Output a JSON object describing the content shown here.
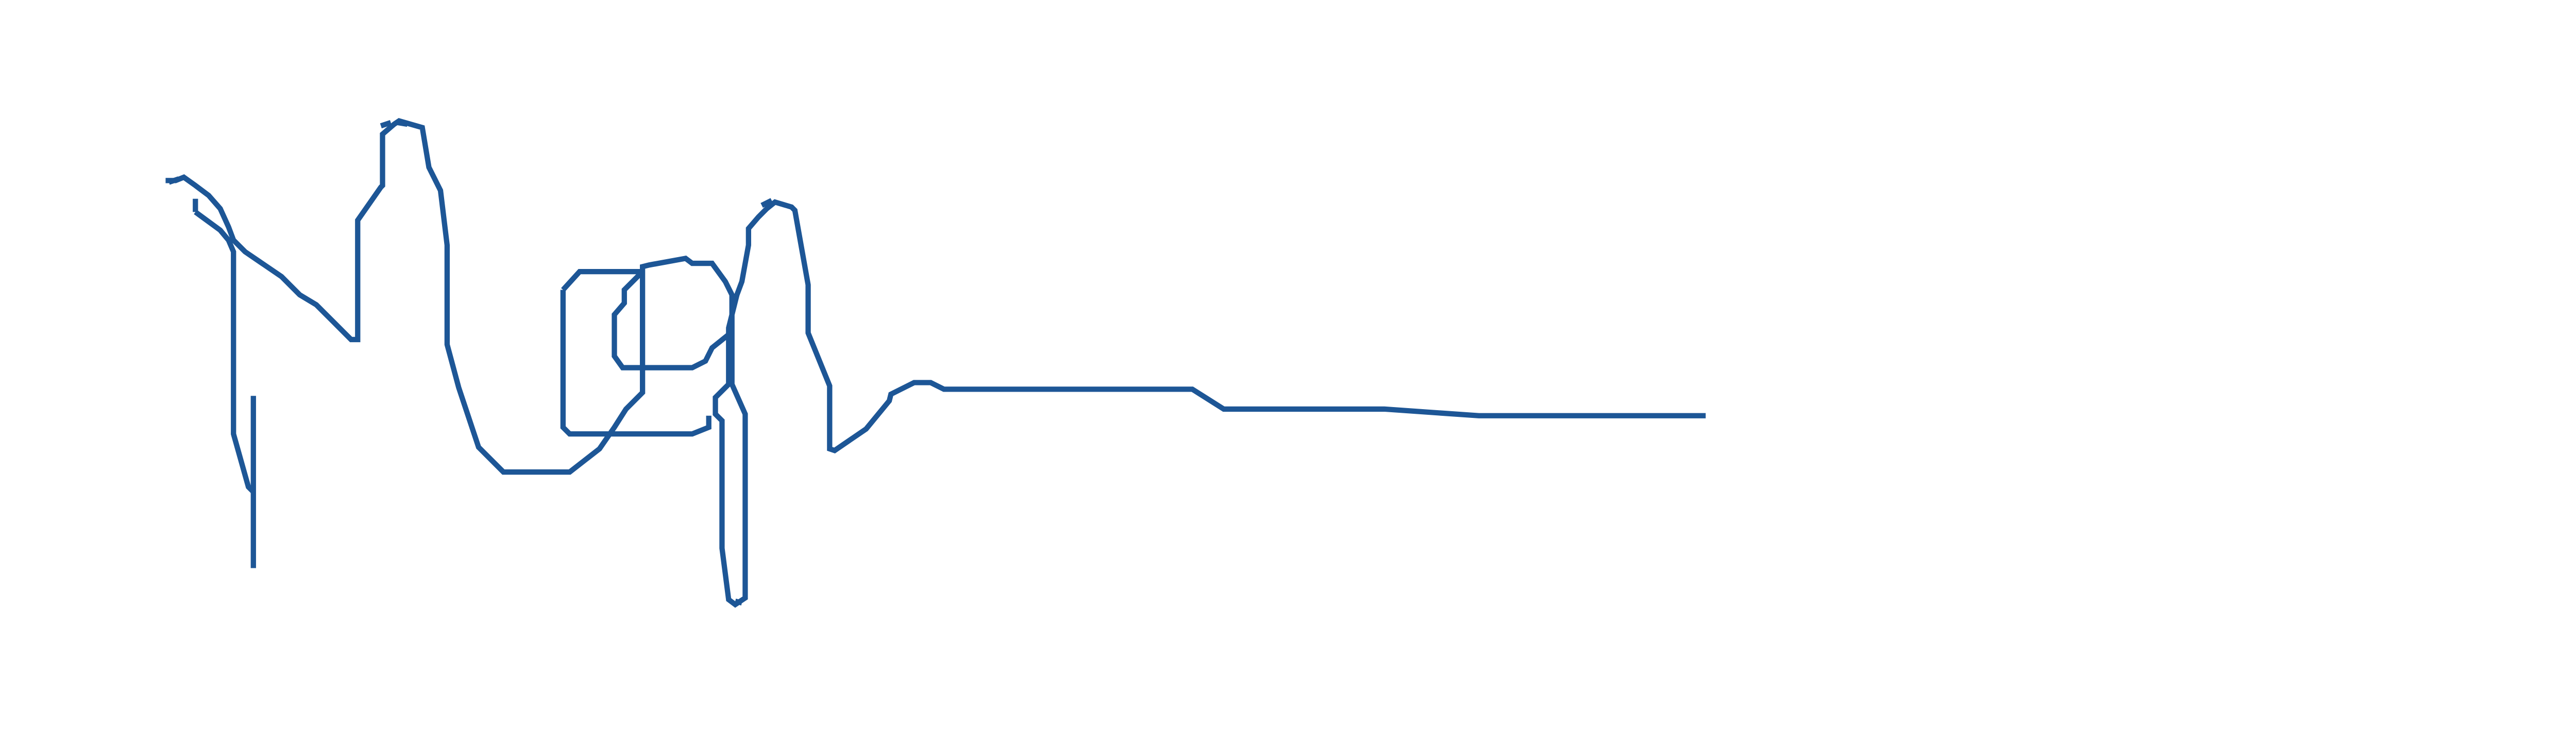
{
  "drawing": {
    "stroke_color": "#1d5696",
    "background_color": "#ffffff"
  }
}
